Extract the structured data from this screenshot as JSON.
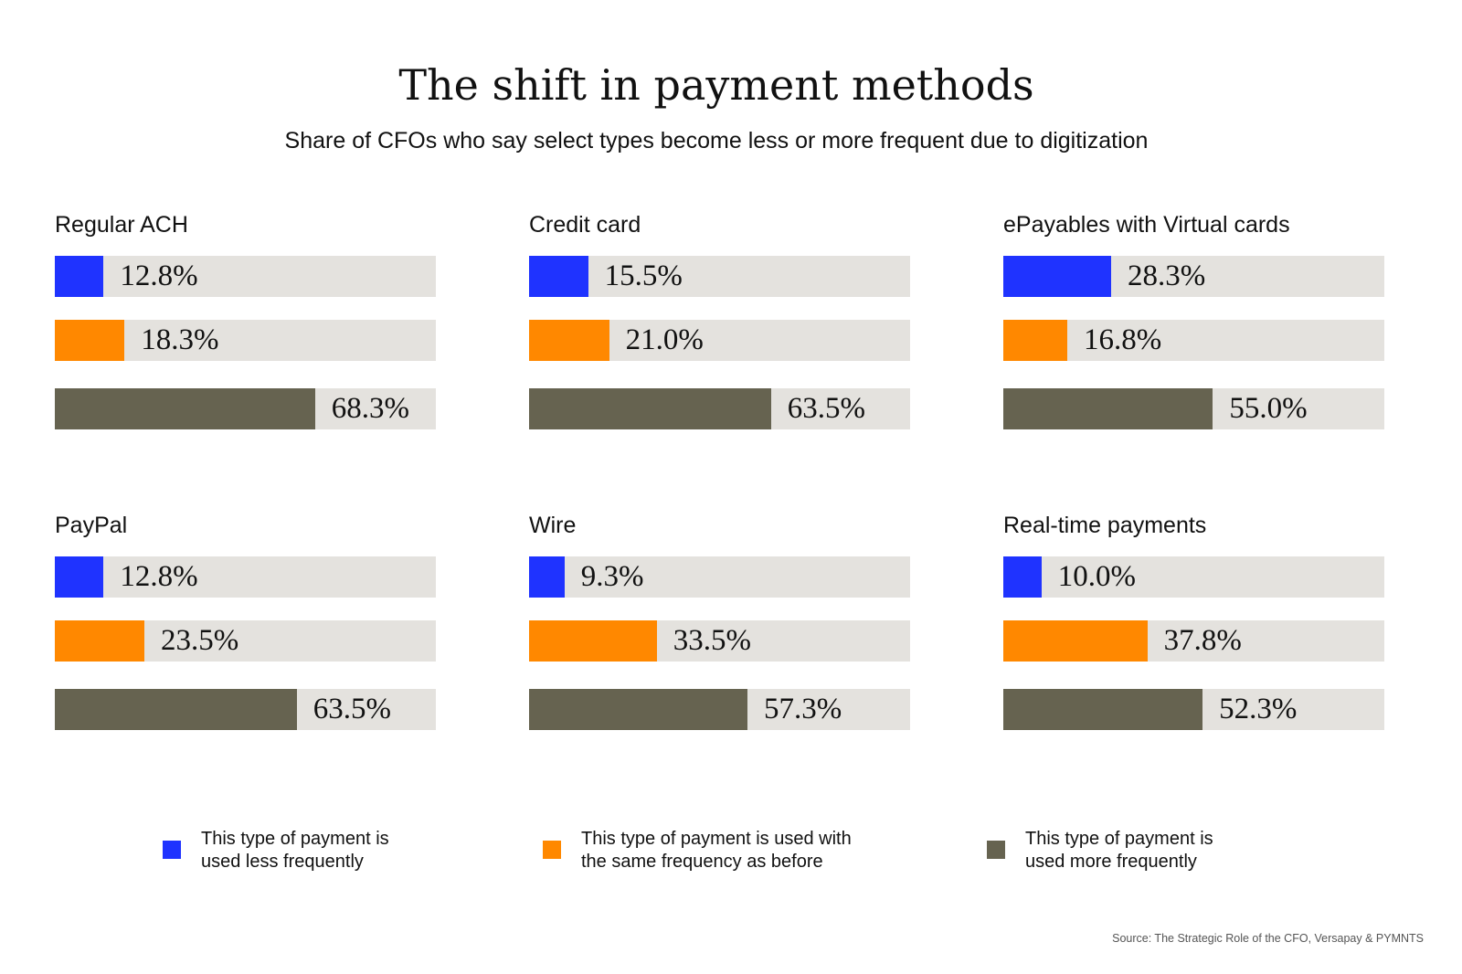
{
  "chart_data": {
    "type": "bar",
    "orientation": "horizontal",
    "title": "The shift in payment methods",
    "subtitle": "Share of CFOs who say select types become less or more frequent due to digitization",
    "xlim": [
      0,
      100
    ],
    "unit": "%",
    "series": [
      {
        "name": "This type of payment is used less frequently",
        "legend_lines": [
          "This type of payment is",
          "used less frequently"
        ],
        "color": "#1f33ff"
      },
      {
        "name": "This type of payment is used with the same frequency as before",
        "legend_lines": [
          "This type of payment is used with",
          "the same frequency as before"
        ],
        "color": "#ff8800"
      },
      {
        "name": "This type of payment is used more frequently",
        "legend_lines": [
          "This type of payment is",
          "used more frequently"
        ],
        "color": "#666350"
      }
    ],
    "panels": [
      {
        "category": "Regular ACH",
        "values": [
          12.8,
          18.3,
          68.3
        ],
        "labels": [
          "12.8%",
          "18.3%",
          "68.3%"
        ]
      },
      {
        "category": "Credit card",
        "values": [
          15.5,
          21.0,
          63.5
        ],
        "labels": [
          "15.5%",
          "21.0%",
          "63.5%"
        ]
      },
      {
        "category": "ePayables with Virtual cards",
        "values": [
          28.3,
          16.8,
          55.0
        ],
        "labels": [
          "28.3%",
          "16.8%",
          "55.0%"
        ]
      },
      {
        "category": "PayPal",
        "values": [
          12.8,
          23.5,
          63.5
        ],
        "labels": [
          "12.8%",
          "23.5%",
          "63.5%"
        ]
      },
      {
        "category": "Wire",
        "values": [
          9.3,
          33.5,
          57.3
        ],
        "labels": [
          "9.3%",
          "33.5%",
          "57.3%"
        ]
      },
      {
        "category": "Real-time payments",
        "values": [
          10.0,
          37.8,
          52.3
        ],
        "labels": [
          "10.0%",
          "37.8%",
          "52.3%"
        ]
      }
    ],
    "track_color": "#e4e2de",
    "legend_placement": "bottom",
    "source": "Source: The Strategic Role of the CFO, Versapay & PYMNTS"
  }
}
